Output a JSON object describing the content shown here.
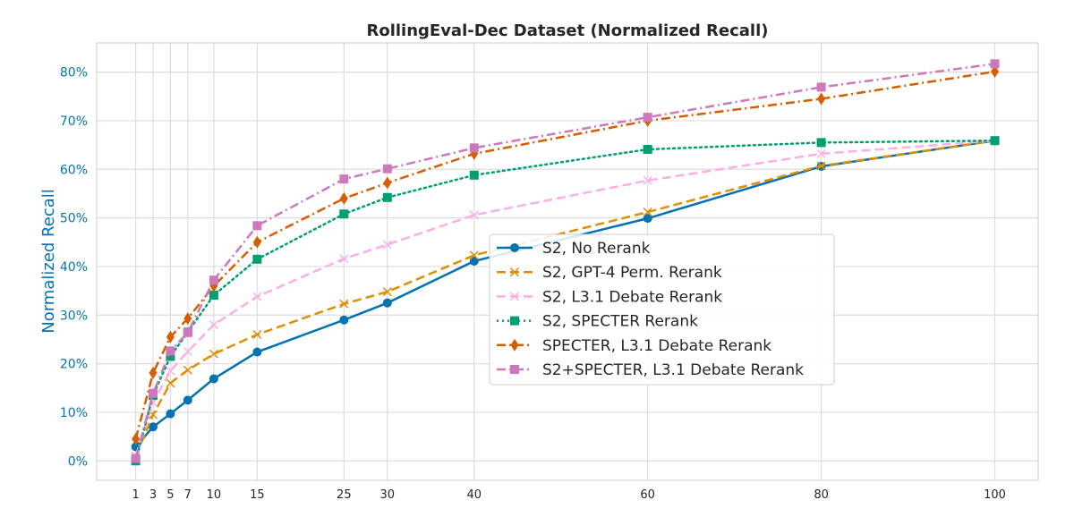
{
  "chart_data": {
    "type": "line",
    "title": "RollingEval-Dec Dataset (Normalized Recall)",
    "xlabel": "",
    "ylabel": "Normalized Recall",
    "x": [
      1,
      3,
      5,
      7,
      10,
      15,
      25,
      30,
      40,
      60,
      80,
      100
    ],
    "xticks": [
      "1",
      "3",
      "5",
      "7",
      "10",
      "15",
      "25",
      "30",
      "40",
      "60",
      "80",
      "100"
    ],
    "yticks": [
      "0%",
      "10%",
      "20%",
      "30%",
      "40%",
      "50%",
      "60%",
      "70%",
      "80%"
    ],
    "ylim": [
      -4,
      86
    ],
    "xlim": [
      -3.5,
      105
    ],
    "grid": true,
    "legend_position": "center-right",
    "series": [
      {
        "name": "S2, No Rerank",
        "color": "#0173b2",
        "dash": "",
        "marker": "circle",
        "values": [
          2.9,
          7.0,
          9.7,
          12.5,
          16.9,
          22.4,
          29.0,
          32.5,
          41.1,
          49.9,
          60.6,
          65.9
        ]
      },
      {
        "name": "S2, GPT-4 Perm. Rerank",
        "color": "#de8f05",
        "dash": "10,5",
        "marker": "x",
        "values": [
          1.0,
          9.5,
          16.0,
          18.7,
          22.0,
          26.0,
          32.3,
          34.8,
          42.3,
          51.2,
          60.7,
          65.9
        ]
      },
      {
        "name": "S2, L3.1 Debate Rerank",
        "color": "#fbafe4",
        "dash": "10,5",
        "marker": "x",
        "values": [
          1.0,
          12.0,
          18.5,
          22.5,
          28.0,
          33.8,
          41.6,
          44.5,
          50.6,
          57.7,
          63.2,
          65.9
        ]
      },
      {
        "name": "S2, SPECTER Rerank",
        "color": "#029e73",
        "dash": "2,4",
        "marker": "square",
        "values": [
          0.0,
          13.5,
          21.5,
          26.5,
          34.1,
          41.5,
          50.8,
          54.2,
          58.8,
          64.1,
          65.5,
          65.9
        ]
      },
      {
        "name": "SPECTER, L3.1 Debate Rerank",
        "color": "#d55e00",
        "dash": "10,4,2,4",
        "marker": "diamond",
        "values": [
          4.5,
          18.1,
          25.5,
          29.3,
          36.0,
          45.0,
          54.0,
          57.2,
          63.2,
          70.0,
          74.5,
          80.1
        ]
      },
      {
        "name": "S2+SPECTER, L3.1 Debate Rerank",
        "color": "#cc78bc",
        "dash": "10,4,2,4",
        "marker": "square",
        "values": [
          0.5,
          13.9,
          22.6,
          26.4,
          37.2,
          48.4,
          58.0,
          60.1,
          64.4,
          70.7,
          76.9,
          81.7
        ]
      }
    ]
  }
}
